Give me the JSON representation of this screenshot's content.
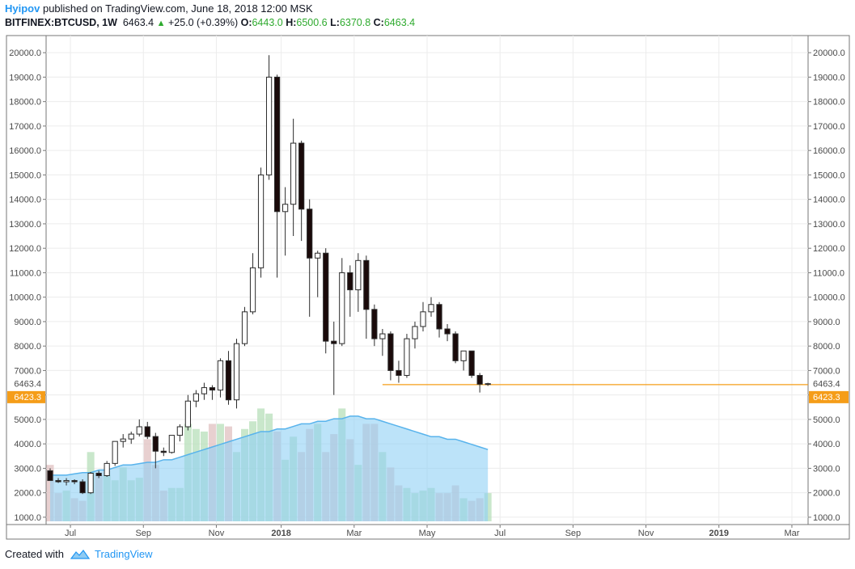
{
  "header": {
    "author": "Hyipov",
    "published": "published on TradingView.com, June 18, 2018 12:00 MSK",
    "symbol": "BITFINEX:BTCUSD, 1W",
    "last": "6463.4",
    "change": "+25.0 (+0.39%)",
    "o_label": "O:",
    "o_value": "6443.0",
    "h_label": "H:",
    "h_value": "6500.6",
    "l_label": "L:",
    "l_value": "6370.8",
    "c_label": "C:",
    "c_value": "6463.4"
  },
  "footer": {
    "created_with": "Created with",
    "brand": "TradingView"
  },
  "colors": {
    "up_fill": "#ffffff",
    "down_fill": "#1a0a0a",
    "candle_stroke": "#2b2b2b",
    "vol_up": "#b7dfb9",
    "vol_down": "#e0c0c0",
    "vol_ma": "#8fd0f5",
    "vol_ma_line": "#58b3ec",
    "orange": "#f59d19",
    "grid": "#ececec",
    "tag_orange": "#f59d19"
  },
  "chart_data": {
    "type": "candlestick",
    "title": "BITFINEX:BTCUSD, 1W",
    "y_ticks": [
      1000,
      2000,
      3000,
      4000,
      5000,
      6000,
      7000,
      8000,
      9000,
      10000,
      11000,
      12000,
      13000,
      14000,
      15000,
      16000,
      17000,
      18000,
      19000,
      20000
    ],
    "y_tick_labels": [
      "1000.0",
      "2000.0",
      "3000.0",
      "4000.0",
      "5000.0",
      "6000.0",
      "7000.0",
      "8000.0",
      "9000.0",
      "10000.0",
      "11000.0",
      "12000.0",
      "13000.0",
      "14000.0",
      "15000.0",
      "16000.0",
      "17000.0",
      "18000.0",
      "19000.0",
      "20000.0"
    ],
    "ylim": [
      700,
      20700
    ],
    "x_ticks": [
      {
        "label": "Jul",
        "week": 3
      },
      {
        "label": "Sep",
        "week": 12
      },
      {
        "label": "Nov",
        "week": 21
      },
      {
        "label": "2018",
        "week": 29
      },
      {
        "label": "Mar",
        "week": 38
      },
      {
        "label": "May",
        "week": 47
      },
      {
        "label": "Jul",
        "week": 56
      },
      {
        "label": "Sep",
        "week": 65
      },
      {
        "label": "Nov",
        "week": 74
      },
      {
        "label": "2019",
        "week": 83
      },
      {
        "label": "Mar",
        "week": 92
      }
    ],
    "x_total_weeks": 94,
    "candles": [
      {
        "o": 2900,
        "h": 3000,
        "l": 2500,
        "c": 2500
      },
      {
        "o": 2500,
        "h": 2600,
        "l": 2400,
        "c": 2450
      },
      {
        "o": 2450,
        "h": 2600,
        "l": 2300,
        "c": 2500
      },
      {
        "o": 2500,
        "h": 2550,
        "l": 2350,
        "c": 2450
      },
      {
        "o": 2450,
        "h": 2550,
        "l": 1950,
        "c": 2000
      },
      {
        "o": 2000,
        "h": 2850,
        "l": 1950,
        "c": 2800
      },
      {
        "o": 2800,
        "h": 2900,
        "l": 2600,
        "c": 2700
      },
      {
        "o": 2700,
        "h": 3300,
        "l": 2650,
        "c": 3200
      },
      {
        "o": 3200,
        "h": 4100,
        "l": 3100,
        "c": 4100
      },
      {
        "o": 4100,
        "h": 4400,
        "l": 3850,
        "c": 4200
      },
      {
        "o": 4200,
        "h": 4500,
        "l": 4000,
        "c": 4400
      },
      {
        "o": 4400,
        "h": 5000,
        "l": 4300,
        "c": 4700
      },
      {
        "o": 4700,
        "h": 4900,
        "l": 4200,
        "c": 4300
      },
      {
        "o": 4300,
        "h": 4450,
        "l": 3000,
        "c": 3700
      },
      {
        "o": 3700,
        "h": 3850,
        "l": 3500,
        "c": 3650
      },
      {
        "o": 3650,
        "h": 4300,
        "l": 3600,
        "c": 4350
      },
      {
        "o": 4350,
        "h": 4800,
        "l": 4100,
        "c": 4700
      },
      {
        "o": 4700,
        "h": 6000,
        "l": 4550,
        "c": 5750
      },
      {
        "o": 5750,
        "h": 6200,
        "l": 5500,
        "c": 6050
      },
      {
        "o": 6050,
        "h": 6500,
        "l": 5800,
        "c": 6300
      },
      {
        "o": 6300,
        "h": 6400,
        "l": 5800,
        "c": 6200
      },
      {
        "o": 6200,
        "h": 7500,
        "l": 5900,
        "c": 7400
      },
      {
        "o": 7400,
        "h": 7800,
        "l": 5600,
        "c": 5800
      },
      {
        "o": 5800,
        "h": 8300,
        "l": 5450,
        "c": 8100
      },
      {
        "o": 8100,
        "h": 9600,
        "l": 8000,
        "c": 9400
      },
      {
        "o": 9400,
        "h": 11800,
        "l": 9300,
        "c": 11200
      },
      {
        "o": 11200,
        "h": 15300,
        "l": 10800,
        "c": 15000
      },
      {
        "o": 15000,
        "h": 19900,
        "l": 14800,
        "c": 19000
      },
      {
        "o": 19000,
        "h": 19100,
        "l": 10800,
        "c": 13500
      },
      {
        "o": 13500,
        "h": 14500,
        "l": 11700,
        "c": 13800
      },
      {
        "o": 13800,
        "h": 17300,
        "l": 12500,
        "c": 16300
      },
      {
        "o": 16300,
        "h": 16400,
        "l": 12300,
        "c": 13600
      },
      {
        "o": 13600,
        "h": 14000,
        "l": 9200,
        "c": 11600
      },
      {
        "o": 11600,
        "h": 11900,
        "l": 10000,
        "c": 11800
      },
      {
        "o": 11800,
        "h": 12000,
        "l": 7700,
        "c": 8200
      },
      {
        "o": 8200,
        "h": 9000,
        "l": 6000,
        "c": 8100
      },
      {
        "o": 8100,
        "h": 11600,
        "l": 8000,
        "c": 11000
      },
      {
        "o": 11000,
        "h": 11300,
        "l": 9200,
        "c": 10300
      },
      {
        "o": 10300,
        "h": 11800,
        "l": 9400,
        "c": 11500
      },
      {
        "o": 11500,
        "h": 11700,
        "l": 8300,
        "c": 9500
      },
      {
        "o": 9500,
        "h": 9700,
        "l": 8000,
        "c": 8300
      },
      {
        "o": 8300,
        "h": 8700,
        "l": 7600,
        "c": 8500
      },
      {
        "o": 8500,
        "h": 8600,
        "l": 6600,
        "c": 7000
      },
      {
        "o": 7000,
        "h": 7400,
        "l": 6500,
        "c": 6800
      },
      {
        "o": 6800,
        "h": 8500,
        "l": 6700,
        "c": 8300
      },
      {
        "o": 8300,
        "h": 9000,
        "l": 7900,
        "c": 8800
      },
      {
        "o": 8800,
        "h": 9800,
        "l": 8600,
        "c": 9400
      },
      {
        "o": 9400,
        "h": 10000,
        "l": 9200,
        "c": 9700
      },
      {
        "o": 9700,
        "h": 9800,
        "l": 8350,
        "c": 8700
      },
      {
        "o": 8700,
        "h": 8900,
        "l": 8200,
        "c": 8500
      },
      {
        "o": 8500,
        "h": 8600,
        "l": 7300,
        "c": 7400
      },
      {
        "o": 7400,
        "h": 7800,
        "l": 7000,
        "c": 7800
      },
      {
        "o": 7800,
        "h": 7800,
        "l": 6700,
        "c": 6800
      },
      {
        "o": 6800,
        "h": 6900,
        "l": 6100,
        "c": 6440
      },
      {
        "o": 6443.0,
        "h": 6500.6,
        "l": 6370.8,
        "c": 6463.4
      }
    ],
    "volume": [
      2200,
      1100,
      1200,
      900,
      800,
      2700,
      1800,
      1800,
      1600,
      2100,
      1600,
      1700,
      3200,
      2200,
      1200,
      1300,
      1300,
      3800,
      3600,
      3500,
      3800,
      3800,
      3700,
      2700,
      3600,
      3900,
      4400,
      4200,
      3500,
      2400,
      3300,
      2700,
      3600,
      3800,
      2700,
      3400,
      4400,
      3200,
      2200,
      3800,
      3800,
      2700,
      2100,
      1400,
      1300,
      1100,
      1200,
      1300,
      1100,
      1100,
      1400,
      900,
      800,
      900,
      1100
    ],
    "volume_ma": [
      1800,
      1800,
      1800,
      1850,
      1900,
      1900,
      2000,
      2000,
      2100,
      2200,
      2200,
      2250,
      2300,
      2300,
      2400,
      2400,
      2500,
      2600,
      2700,
      2800,
      2900,
      3000,
      3100,
      3200,
      3300,
      3400,
      3500,
      3500,
      3600,
      3600,
      3700,
      3800,
      3800,
      3900,
      3900,
      4000,
      4000,
      4100,
      4100,
      4000,
      4000,
      3900,
      3800,
      3700,
      3600,
      3500,
      3400,
      3300,
      3300,
      3200,
      3200,
      3100,
      3000,
      2900,
      2800
    ],
    "last_price_label": "6463.4",
    "level_label": "6423.3",
    "level_value": 6423.3,
    "level_start_week": 41
  }
}
